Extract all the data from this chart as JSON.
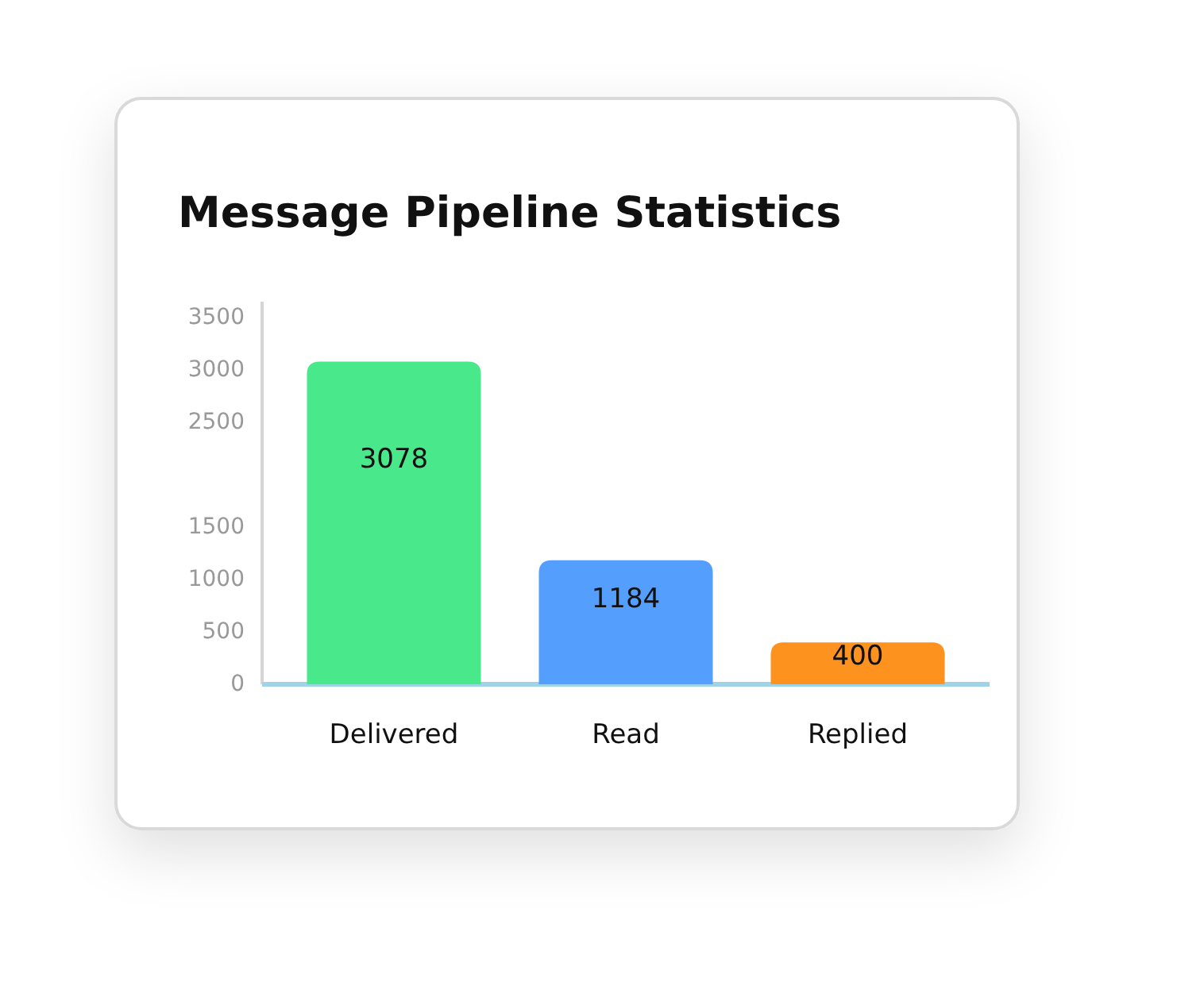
{
  "chart_data": {
    "type": "bar",
    "title": "Message Pipeline Statistics",
    "categories": [
      "Delivered",
      "Read",
      "Replied"
    ],
    "values": [
      3078,
      1184,
      400
    ],
    "colors": [
      "#48e88b",
      "#549ffd",
      "#fd931e"
    ],
    "ylim": [
      0,
      3650
    ],
    "yticks": [
      0,
      500,
      1000,
      1500,
      2500,
      3000,
      3500
    ],
    "data_labels": true,
    "grid": false
  }
}
